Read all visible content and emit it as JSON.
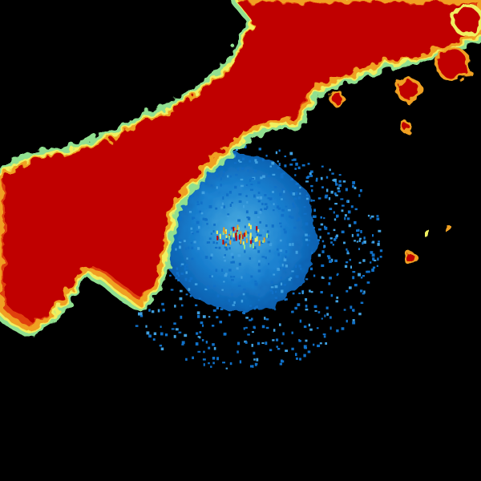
{
  "radar": {
    "background": "#000000",
    "colors": {
      "heavy": "#c00000",
      "strong": "#e04010",
      "moderate": "#f0a020",
      "light_yellow": "#f0f060",
      "light_green": "#90e090",
      "clear_air": "#1070c8",
      "clear_air_light": "#40a0e0"
    }
  }
}
